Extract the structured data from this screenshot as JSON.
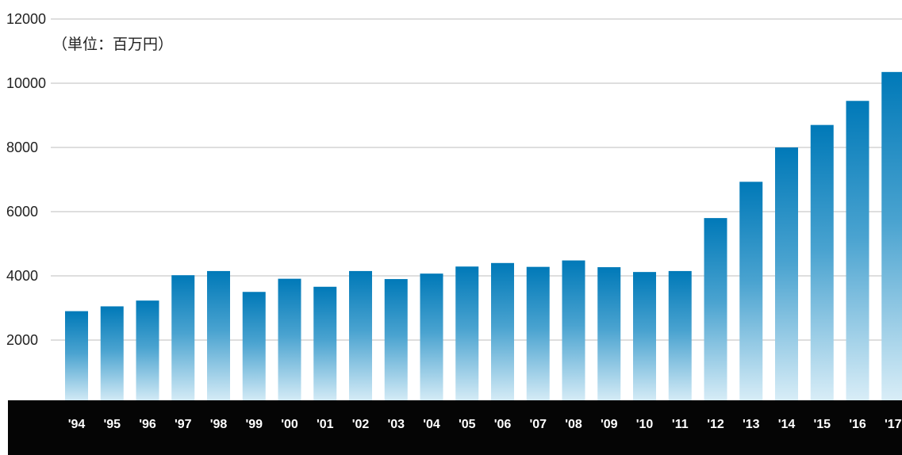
{
  "chart_data": {
    "type": "bar",
    "unit_label": "（単位：百万円）",
    "categories": [
      "'94",
      "'95",
      "'96",
      "'97",
      "'98",
      "'99",
      "'00",
      "'01",
      "'02",
      "'03",
      "'04",
      "'05",
      "'06",
      "'07",
      "'08",
      "'09",
      "'10",
      "'11",
      "'12",
      "'13",
      "'14",
      "'15",
      "'16",
      "'17"
    ],
    "values": [
      2900,
      3050,
      3230,
      4020,
      4150,
      3500,
      3910,
      3660,
      4150,
      3900,
      4070,
      4290,
      4400,
      4280,
      4480,
      4270,
      4120,
      4150,
      5800,
      6930,
      8000,
      8700,
      9450,
      10350
    ],
    "ylim": [
      0,
      12000
    ],
    "yticks": [
      2000,
      4000,
      6000,
      8000,
      10000,
      12000
    ],
    "grid": true,
    "colors": {
      "bar_top": "#0079b8",
      "bar_bottom": "#dceff8",
      "axis_band": "#050505",
      "grid": "#bdbdbd"
    }
  }
}
